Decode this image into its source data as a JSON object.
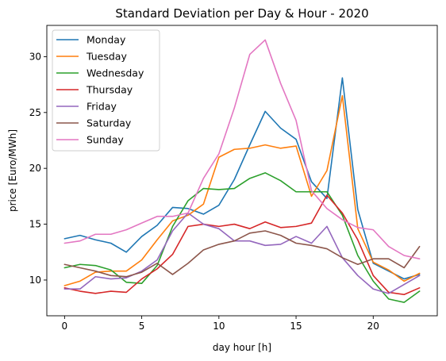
{
  "chart_data": {
    "type": "line",
    "title": "Standard Deviation per Day & Hour - 2020",
    "xlabel": "day hour [h]",
    "ylabel": "price [Euro/MWh]",
    "xlim": [
      -1.15,
      24.15
    ],
    "ylim": [
      6.8,
      32.8
    ],
    "xticks": [
      0,
      5,
      10,
      15,
      20
    ],
    "yticks": [
      10,
      15,
      20,
      25,
      30
    ],
    "legend_position": "top-left",
    "grid": false,
    "x": [
      0,
      1,
      2,
      3,
      4,
      5,
      6,
      7,
      8,
      9,
      10,
      11,
      12,
      13,
      14,
      15,
      16,
      17,
      18,
      19,
      20,
      21,
      22,
      23
    ],
    "series": [
      {
        "name": "Monday",
        "color": "#1f77b4",
        "values": [
          13.7,
          14.0,
          13.6,
          13.3,
          12.5,
          13.9,
          14.9,
          16.5,
          16.4,
          15.9,
          16.7,
          19.0,
          22.1,
          25.1,
          23.6,
          22.6,
          18.8,
          17.3,
          28.1,
          16.3,
          11.5,
          10.8,
          10.1,
          10.5
        ]
      },
      {
        "name": "Tuesday",
        "color": "#ff7f0e",
        "values": [
          9.5,
          9.9,
          10.7,
          10.8,
          10.8,
          11.8,
          13.6,
          15.3,
          15.8,
          16.8,
          21.0,
          21.7,
          21.8,
          22.1,
          21.8,
          22.0,
          17.5,
          19.8,
          26.5,
          14.6,
          11.6,
          10.9,
          9.9,
          10.6
        ]
      },
      {
        "name": "Wednesday",
        "color": "#2ca02c",
        "values": [
          11.1,
          11.4,
          11.3,
          10.9,
          9.8,
          9.7,
          11.3,
          14.8,
          17.1,
          18.2,
          18.1,
          18.2,
          19.1,
          19.6,
          18.9,
          17.9,
          17.9,
          17.9,
          15.8,
          12.2,
          9.9,
          8.3,
          8.0,
          9.0
        ]
      },
      {
        "name": "Thursday",
        "color": "#d62728",
        "values": [
          9.3,
          9.0,
          8.8,
          9.0,
          8.9,
          10.1,
          11.0,
          12.3,
          14.8,
          15.0,
          14.8,
          15.0,
          14.6,
          15.2,
          14.7,
          14.8,
          15.1,
          17.6,
          16.0,
          13.6,
          10.4,
          8.9,
          8.7,
          9.3
        ]
      },
      {
        "name": "Friday",
        "color": "#9467bd",
        "values": [
          9.2,
          9.2,
          10.3,
          10.1,
          10.2,
          10.8,
          11.8,
          14.4,
          16.0,
          15.0,
          14.6,
          13.5,
          13.5,
          13.1,
          13.2,
          13.9,
          13.3,
          14.8,
          12.0,
          10.4,
          9.2,
          8.8,
          9.6,
          10.4
        ]
      },
      {
        "name": "Saturday",
        "color": "#8c564b",
        "values": [
          11.4,
          11.1,
          10.8,
          10.4,
          10.3,
          10.7,
          11.5,
          10.5,
          11.5,
          12.7,
          13.2,
          13.5,
          14.2,
          14.4,
          14.0,
          13.3,
          13.1,
          12.8,
          12.0,
          11.4,
          11.9,
          11.9,
          11.1,
          13.0
        ]
      },
      {
        "name": "Sunday",
        "color": "#e377c2",
        "values": [
          13.3,
          13.5,
          14.1,
          14.1,
          14.5,
          15.1,
          15.7,
          15.7,
          16.0,
          19.1,
          21.3,
          25.4,
          30.2,
          31.5,
          27.6,
          24.3,
          18.0,
          16.4,
          15.4,
          14.7,
          14.5,
          13.0,
          12.2,
          11.9
        ]
      }
    ]
  }
}
